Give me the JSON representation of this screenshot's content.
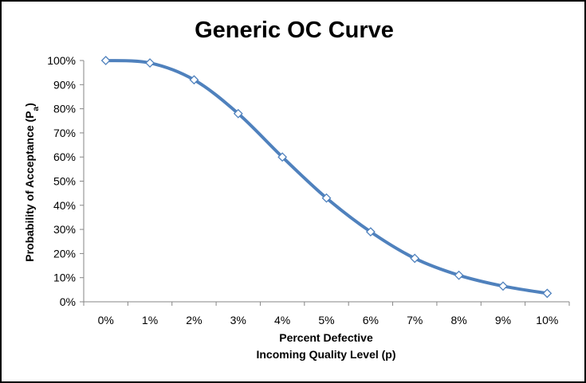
{
  "chart_data": {
    "type": "line",
    "title": "Generic OC Curve",
    "x": [
      "0%",
      "1%",
      "2%",
      "3%",
      "4%",
      "5%",
      "6%",
      "7%",
      "8%",
      "9%",
      "10%"
    ],
    "series": [
      {
        "name": "Probability of Acceptance",
        "values": [
          1.0,
          0.99,
          0.92,
          0.78,
          0.6,
          0.43,
          0.29,
          0.18,
          0.11,
          0.065,
          0.035
        ]
      }
    ],
    "xlabel_line1": "Percent Defective",
    "xlabel_line2": "Incoming Quality Level (p)",
    "ylabel_main": "Probability of Acceptance (P",
    "ylabel_sub": "a",
    "ylabel_close": ")",
    "yticks": [
      "0%",
      "10%",
      "20%",
      "30%",
      "40%",
      "50%",
      "60%",
      "70%",
      "80%",
      "90%",
      "100%"
    ],
    "ylim": [
      0,
      1
    ],
    "line_color": "#4F81BD",
    "marker": "diamond",
    "grid": false,
    "legend": "none"
  }
}
